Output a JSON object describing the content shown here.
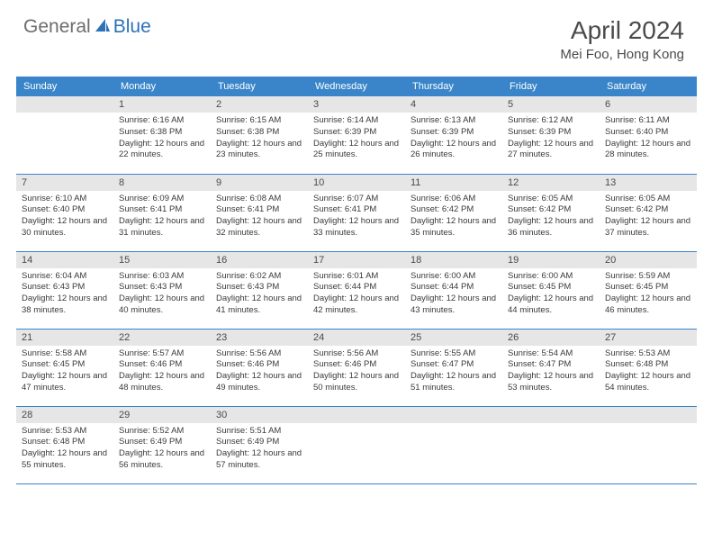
{
  "logo": {
    "general": "General",
    "blue": "Blue"
  },
  "title": "April 2024",
  "location": "Mei Foo, Hong Kong",
  "colors": {
    "header_bg": "#3a85c9",
    "header_text": "#ffffff",
    "daynum_bg": "#e6e6e6",
    "text": "#4a4a4a",
    "logo_gray": "#6d6d6d",
    "logo_blue": "#2d71b8",
    "border": "#3a85c9"
  },
  "days_of_week": [
    "Sunday",
    "Monday",
    "Tuesday",
    "Wednesday",
    "Thursday",
    "Friday",
    "Saturday"
  ],
  "weeks": [
    [
      null,
      {
        "n": "1",
        "sr": "6:16 AM",
        "ss": "6:38 PM",
        "dl": "12 hours and 22 minutes."
      },
      {
        "n": "2",
        "sr": "6:15 AM",
        "ss": "6:38 PM",
        "dl": "12 hours and 23 minutes."
      },
      {
        "n": "3",
        "sr": "6:14 AM",
        "ss": "6:39 PM",
        "dl": "12 hours and 25 minutes."
      },
      {
        "n": "4",
        "sr": "6:13 AM",
        "ss": "6:39 PM",
        "dl": "12 hours and 26 minutes."
      },
      {
        "n": "5",
        "sr": "6:12 AM",
        "ss": "6:39 PM",
        "dl": "12 hours and 27 minutes."
      },
      {
        "n": "6",
        "sr": "6:11 AM",
        "ss": "6:40 PM",
        "dl": "12 hours and 28 minutes."
      }
    ],
    [
      {
        "n": "7",
        "sr": "6:10 AM",
        "ss": "6:40 PM",
        "dl": "12 hours and 30 minutes."
      },
      {
        "n": "8",
        "sr": "6:09 AM",
        "ss": "6:41 PM",
        "dl": "12 hours and 31 minutes."
      },
      {
        "n": "9",
        "sr": "6:08 AM",
        "ss": "6:41 PM",
        "dl": "12 hours and 32 minutes."
      },
      {
        "n": "10",
        "sr": "6:07 AM",
        "ss": "6:41 PM",
        "dl": "12 hours and 33 minutes."
      },
      {
        "n": "11",
        "sr": "6:06 AM",
        "ss": "6:42 PM",
        "dl": "12 hours and 35 minutes."
      },
      {
        "n": "12",
        "sr": "6:05 AM",
        "ss": "6:42 PM",
        "dl": "12 hours and 36 minutes."
      },
      {
        "n": "13",
        "sr": "6:05 AM",
        "ss": "6:42 PM",
        "dl": "12 hours and 37 minutes."
      }
    ],
    [
      {
        "n": "14",
        "sr": "6:04 AM",
        "ss": "6:43 PM",
        "dl": "12 hours and 38 minutes."
      },
      {
        "n": "15",
        "sr": "6:03 AM",
        "ss": "6:43 PM",
        "dl": "12 hours and 40 minutes."
      },
      {
        "n": "16",
        "sr": "6:02 AM",
        "ss": "6:43 PM",
        "dl": "12 hours and 41 minutes."
      },
      {
        "n": "17",
        "sr": "6:01 AM",
        "ss": "6:44 PM",
        "dl": "12 hours and 42 minutes."
      },
      {
        "n": "18",
        "sr": "6:00 AM",
        "ss": "6:44 PM",
        "dl": "12 hours and 43 minutes."
      },
      {
        "n": "19",
        "sr": "6:00 AM",
        "ss": "6:45 PM",
        "dl": "12 hours and 44 minutes."
      },
      {
        "n": "20",
        "sr": "5:59 AM",
        "ss": "6:45 PM",
        "dl": "12 hours and 46 minutes."
      }
    ],
    [
      {
        "n": "21",
        "sr": "5:58 AM",
        "ss": "6:45 PM",
        "dl": "12 hours and 47 minutes."
      },
      {
        "n": "22",
        "sr": "5:57 AM",
        "ss": "6:46 PM",
        "dl": "12 hours and 48 minutes."
      },
      {
        "n": "23",
        "sr": "5:56 AM",
        "ss": "6:46 PM",
        "dl": "12 hours and 49 minutes."
      },
      {
        "n": "24",
        "sr": "5:56 AM",
        "ss": "6:46 PM",
        "dl": "12 hours and 50 minutes."
      },
      {
        "n": "25",
        "sr": "5:55 AM",
        "ss": "6:47 PM",
        "dl": "12 hours and 51 minutes."
      },
      {
        "n": "26",
        "sr": "5:54 AM",
        "ss": "6:47 PM",
        "dl": "12 hours and 53 minutes."
      },
      {
        "n": "27",
        "sr": "5:53 AM",
        "ss": "6:48 PM",
        "dl": "12 hours and 54 minutes."
      }
    ],
    [
      {
        "n": "28",
        "sr": "5:53 AM",
        "ss": "6:48 PM",
        "dl": "12 hours and 55 minutes."
      },
      {
        "n": "29",
        "sr": "5:52 AM",
        "ss": "6:49 PM",
        "dl": "12 hours and 56 minutes."
      },
      {
        "n": "30",
        "sr": "5:51 AM",
        "ss": "6:49 PM",
        "dl": "12 hours and 57 minutes."
      },
      null,
      null,
      null,
      null
    ]
  ],
  "labels": {
    "sunrise": "Sunrise:",
    "sunset": "Sunset:",
    "daylight": "Daylight:"
  }
}
